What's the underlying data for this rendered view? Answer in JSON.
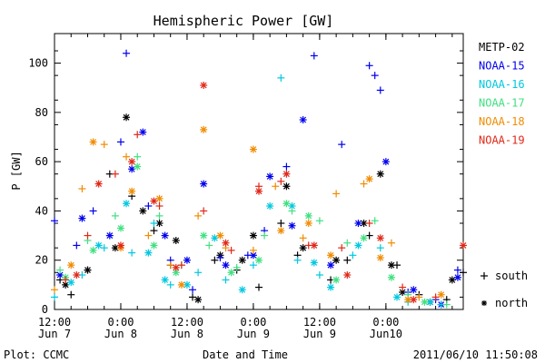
{
  "chart_data": {
    "type": "scatter",
    "title": "Hemispheric Power [GW]",
    "ylabel": "P [GW]",
    "xlabel": "Date and Time",
    "xlim": [
      "2011-06-07 12:00",
      "2011-06-10 14:00"
    ],
    "ylim": [
      0,
      112
    ],
    "yticks": [
      0,
      20,
      40,
      60,
      80,
      100
    ],
    "xticks": [
      {
        "at": "2011-06-07 12:00",
        "time": "12:00",
        "date": "Jun 7"
      },
      {
        "at": "2011-06-08 00:00",
        "time": "0:00",
        "date": "Jun 8"
      },
      {
        "at": "2011-06-08 12:00",
        "time": "12:00",
        "date": "Jun 8"
      },
      {
        "at": "2011-06-09 00:00",
        "time": "0:00",
        "date": "Jun 9"
      },
      {
        "at": "2011-06-09 12:00",
        "time": "12:00",
        "date": "Jun 9"
      },
      {
        "at": "2011-06-10 00:00",
        "time": "0:00",
        "date": "Jun10"
      }
    ],
    "grid": false,
    "legend_position": "right",
    "markers": {
      "south": "+",
      "north": "*"
    },
    "marker_legend": [
      {
        "symbol": "+",
        "label": "south"
      },
      {
        "symbol": "*",
        "label": "north"
      }
    ],
    "series": [
      {
        "name": "METP-02",
        "color": "#000000",
        "south": [
          [
            "2011-06-07 13:00",
            12
          ],
          [
            "2011-06-07 15:00",
            6
          ],
          [
            "2011-06-07 18:00",
            16
          ],
          [
            "2011-06-07 22:00",
            55
          ],
          [
            "2011-06-08 02:00",
            46
          ],
          [
            "2011-06-08 06:00",
            32
          ],
          [
            "2011-06-08 09:00",
            18
          ],
          [
            "2011-06-08 13:00",
            5
          ],
          [
            "2011-06-08 17:00",
            20
          ],
          [
            "2011-06-08 21:00",
            16
          ],
          [
            "2011-06-09 01:00",
            9
          ],
          [
            "2011-06-09 05:00",
            35
          ],
          [
            "2011-06-09 08:00",
            22
          ],
          [
            "2011-06-09 14:00",
            12
          ],
          [
            "2011-06-09 17:00",
            20
          ],
          [
            "2011-06-09 21:00",
            30
          ],
          [
            "2011-06-10 02:00",
            18
          ],
          [
            "2011-06-10 06:00",
            6
          ],
          [
            "2011-06-10 11:00",
            4
          ],
          [
            "2011-06-10 14:00",
            15
          ]
        ],
        "north": [
          [
            "2011-06-07 14:00",
            10
          ],
          [
            "2011-06-07 18:00",
            16
          ],
          [
            "2011-06-07 23:00",
            25
          ],
          [
            "2011-06-08 01:00",
            78
          ],
          [
            "2011-06-08 04:00",
            40
          ],
          [
            "2011-06-08 07:00",
            35
          ],
          [
            "2011-06-08 10:00",
            28
          ],
          [
            "2011-06-08 14:00",
            4
          ],
          [
            "2011-06-08 18:00",
            22
          ],
          [
            "2011-06-08 22:00",
            20
          ],
          [
            "2011-06-09 00:00",
            30
          ],
          [
            "2011-06-09 06:00",
            50
          ],
          [
            "2011-06-09 09:00",
            25
          ],
          [
            "2011-06-09 15:00",
            20
          ],
          [
            "2011-06-09 20:00",
            35
          ],
          [
            "2011-06-09 23:00",
            55
          ],
          [
            "2011-06-10 01:00",
            18
          ],
          [
            "2011-06-10 03:00",
            7
          ],
          [
            "2011-06-10 08:00",
            3
          ],
          [
            "2011-06-10 12:00",
            12
          ]
        ]
      },
      {
        "name": "NOAA-15",
        "color": "#0000ee",
        "south": [
          [
            "2011-06-07 12:00",
            36
          ],
          [
            "2011-06-07 16:00",
            26
          ],
          [
            "2011-06-07 19:00",
            40
          ],
          [
            "2011-06-08 00:00",
            68
          ],
          [
            "2011-06-08 01:00",
            104
          ],
          [
            "2011-06-08 05:00",
            42
          ],
          [
            "2011-06-08 09:00",
            20
          ],
          [
            "2011-06-08 13:00",
            8
          ],
          [
            "2011-06-08 18:00",
            21
          ],
          [
            "2011-06-08 23:00",
            22
          ],
          [
            "2011-06-09 02:00",
            32
          ],
          [
            "2011-06-09 06:00",
            58
          ],
          [
            "2011-06-09 11:00",
            103
          ],
          [
            "2011-06-09 16:00",
            67
          ],
          [
            "2011-06-09 21:00",
            99
          ],
          [
            "2011-06-09 22:00",
            95
          ],
          [
            "2011-06-09 23:00",
            89
          ],
          [
            "2011-06-10 04:00",
            7
          ],
          [
            "2011-06-10 09:00",
            4
          ],
          [
            "2011-06-10 13:00",
            16
          ]
        ],
        "north": [
          [
            "2011-06-07 13:00",
            14
          ],
          [
            "2011-06-07 17:00",
            37
          ],
          [
            "2011-06-07 22:00",
            30
          ],
          [
            "2011-06-08 02:00",
            57
          ],
          [
            "2011-06-08 04:00",
            72
          ],
          [
            "2011-06-08 08:00",
            30
          ],
          [
            "2011-06-08 12:00",
            20
          ],
          [
            "2011-06-08 15:00",
            51
          ],
          [
            "2011-06-08 19:00",
            18
          ],
          [
            "2011-06-09 00:00",
            22
          ],
          [
            "2011-06-09 03:00",
            54
          ],
          [
            "2011-06-09 07:00",
            34
          ],
          [
            "2011-06-09 09:00",
            77
          ],
          [
            "2011-06-09 14:00",
            18
          ],
          [
            "2011-06-09 19:00",
            35
          ],
          [
            "2011-06-10 00:00",
            60
          ],
          [
            "2011-06-10 05:00",
            8
          ],
          [
            "2011-06-10 10:00",
            2
          ],
          [
            "2011-06-10 13:00",
            13
          ]
        ]
      },
      {
        "name": "NOAA-16",
        "color": "#00c8e0",
        "south": [
          [
            "2011-06-07 12:00",
            5
          ],
          [
            "2011-06-07 17:00",
            14
          ],
          [
            "2011-06-07 21:00",
            25
          ],
          [
            "2011-06-08 02:00",
            23
          ],
          [
            "2011-06-08 06:00",
            35
          ],
          [
            "2011-06-08 09:00",
            10
          ],
          [
            "2011-06-08 14:00",
            15
          ],
          [
            "2011-06-08 19:00",
            12
          ],
          [
            "2011-06-09 00:00",
            18
          ],
          [
            "2011-06-09 05:00",
            94
          ],
          [
            "2011-06-09 08:00",
            20
          ],
          [
            "2011-06-09 12:00",
            14
          ],
          [
            "2011-06-09 18:00",
            22
          ],
          [
            "2011-06-09 23:00",
            25
          ],
          [
            "2011-06-10 04:00",
            3
          ],
          [
            "2011-06-10 10:00",
            2
          ]
        ],
        "north": [
          [
            "2011-06-07 15:00",
            11
          ],
          [
            "2011-06-07 20:00",
            26
          ],
          [
            "2011-06-08 01:00",
            43
          ],
          [
            "2011-06-08 05:00",
            23
          ],
          [
            "2011-06-08 08:00",
            12
          ],
          [
            "2011-06-08 12:00",
            10
          ],
          [
            "2011-06-08 17:00",
            29
          ],
          [
            "2011-06-08 22:00",
            8
          ],
          [
            "2011-06-09 03:00",
            42
          ],
          [
            "2011-06-09 07:00",
            42
          ],
          [
            "2011-06-09 11:00",
            19
          ],
          [
            "2011-06-09 14:00",
            9
          ],
          [
            "2011-06-09 19:00",
            26
          ],
          [
            "2011-06-10 02:00",
            5
          ],
          [
            "2011-06-10 08:00",
            3
          ]
        ]
      },
      {
        "name": "NOAA-17",
        "color": "#40e080",
        "south": [
          [
            "2011-06-07 13:00",
            16
          ],
          [
            "2011-06-07 18:00",
            28
          ],
          [
            "2011-06-07 23:00",
            38
          ],
          [
            "2011-06-08 03:00",
            62
          ],
          [
            "2011-06-08 07:00",
            38
          ],
          [
            "2011-06-08 11:00",
            18
          ],
          [
            "2011-06-08 16:00",
            26
          ],
          [
            "2011-06-08 21:00",
            17
          ],
          [
            "2011-06-09 02:00",
            30
          ],
          [
            "2011-06-09 07:00",
            40
          ],
          [
            "2011-06-09 12:00",
            36
          ],
          [
            "2011-06-09 17:00",
            27
          ],
          [
            "2011-06-09 22:00",
            36
          ],
          [
            "2011-06-10 04:00",
            6
          ],
          [
            "2011-06-10 11:00",
            2
          ]
        ],
        "north": [
          [
            "2011-06-07 14:00",
            13
          ],
          [
            "2011-06-07 19:00",
            24
          ],
          [
            "2011-06-08 00:00",
            33
          ],
          [
            "2011-06-08 03:00",
            58
          ],
          [
            "2011-06-08 06:00",
            26
          ],
          [
            "2011-06-08 10:00",
            15
          ],
          [
            "2011-06-08 15:00",
            30
          ],
          [
            "2011-06-08 20:00",
            15
          ],
          [
            "2011-06-09 01:00",
            20
          ],
          [
            "2011-06-09 06:00",
            43
          ],
          [
            "2011-06-09 10:00",
            38
          ],
          [
            "2011-06-09 15:00",
            12
          ],
          [
            "2011-06-09 20:00",
            29
          ],
          [
            "2011-06-10 01:00",
            13
          ],
          [
            "2011-06-10 07:00",
            3
          ]
        ]
      },
      {
        "name": "NOAA-18",
        "color": "#f08c00",
        "south": [
          [
            "2011-06-07 12:00",
            8
          ],
          [
            "2011-06-07 17:00",
            49
          ],
          [
            "2011-06-07 21:00",
            67
          ],
          [
            "2011-06-08 01:00",
            62
          ],
          [
            "2011-06-08 05:00",
            30
          ],
          [
            "2011-06-08 09:00",
            18
          ],
          [
            "2011-06-08 14:00",
            38
          ],
          [
            "2011-06-08 19:00",
            25
          ],
          [
            "2011-06-09 00:00",
            24
          ],
          [
            "2011-06-09 04:00",
            50
          ],
          [
            "2011-06-09 09:00",
            29
          ],
          [
            "2011-06-09 15:00",
            47
          ],
          [
            "2011-06-09 20:00",
            51
          ],
          [
            "2011-06-10 01:00",
            27
          ],
          [
            "2011-06-10 06:00",
            5
          ]
        ],
        "north": [
          [
            "2011-06-07 15:00",
            18
          ],
          [
            "2011-06-07 19:00",
            68
          ],
          [
            "2011-06-08 00:00",
            25
          ],
          [
            "2011-06-08 02:00",
            48
          ],
          [
            "2011-06-08 07:00",
            45
          ],
          [
            "2011-06-08 11:00",
            10
          ],
          [
            "2011-06-08 15:00",
            73
          ],
          [
            "2011-06-08 18:00",
            30
          ],
          [
            "2011-06-09 00:00",
            65
          ],
          [
            "2011-06-09 05:00",
            32
          ],
          [
            "2011-06-09 10:00",
            35
          ],
          [
            "2011-06-09 14:00",
            22
          ],
          [
            "2011-06-09 21:00",
            53
          ],
          [
            "2011-06-09 23:00",
            21
          ],
          [
            "2011-06-10 04:00",
            4
          ],
          [
            "2011-06-10 10:00",
            6
          ]
        ]
      },
      {
        "name": "NOAA-19",
        "color": "#e02818",
        "south": [
          [
            "2011-06-07 14:00",
            12
          ],
          [
            "2011-06-07 18:00",
            30
          ],
          [
            "2011-06-07 23:00",
            55
          ],
          [
            "2011-06-08 03:00",
            71
          ],
          [
            "2011-06-08 07:00",
            42
          ],
          [
            "2011-06-08 11:00",
            18
          ],
          [
            "2011-06-08 15:00",
            40
          ],
          [
            "2011-06-08 20:00",
            24
          ],
          [
            "2011-06-09 01:00",
            50
          ],
          [
            "2011-06-09 05:00",
            52
          ],
          [
            "2011-06-09 10:00",
            26
          ],
          [
            "2011-06-09 16:00",
            25
          ],
          [
            "2011-06-09 21:00",
            35
          ],
          [
            "2011-06-10 03:00",
            9
          ],
          [
            "2011-06-10 09:00",
            5
          ]
        ],
        "north": [
          [
            "2011-06-07 16:00",
            14
          ],
          [
            "2011-06-07 20:00",
            51
          ],
          [
            "2011-06-08 00:00",
            26
          ],
          [
            "2011-06-08 02:00",
            60
          ],
          [
            "2011-06-08 06:00",
            44
          ],
          [
            "2011-06-08 10:00",
            17
          ],
          [
            "2011-06-08 15:00",
            91
          ],
          [
            "2011-06-08 19:00",
            27
          ],
          [
            "2011-06-09 01:00",
            48
          ],
          [
            "2011-06-09 06:00",
            55
          ],
          [
            "2011-06-09 11:00",
            26
          ],
          [
            "2011-06-09 17:00",
            14
          ],
          [
            "2011-06-09 23:00",
            29
          ],
          [
            "2011-06-10 05:00",
            4
          ],
          [
            "2011-06-10 14:00",
            26
          ]
        ]
      }
    ]
  },
  "footer": {
    "left": "Plot: CCMC",
    "right": "2011/06/10 11:50:08"
  }
}
